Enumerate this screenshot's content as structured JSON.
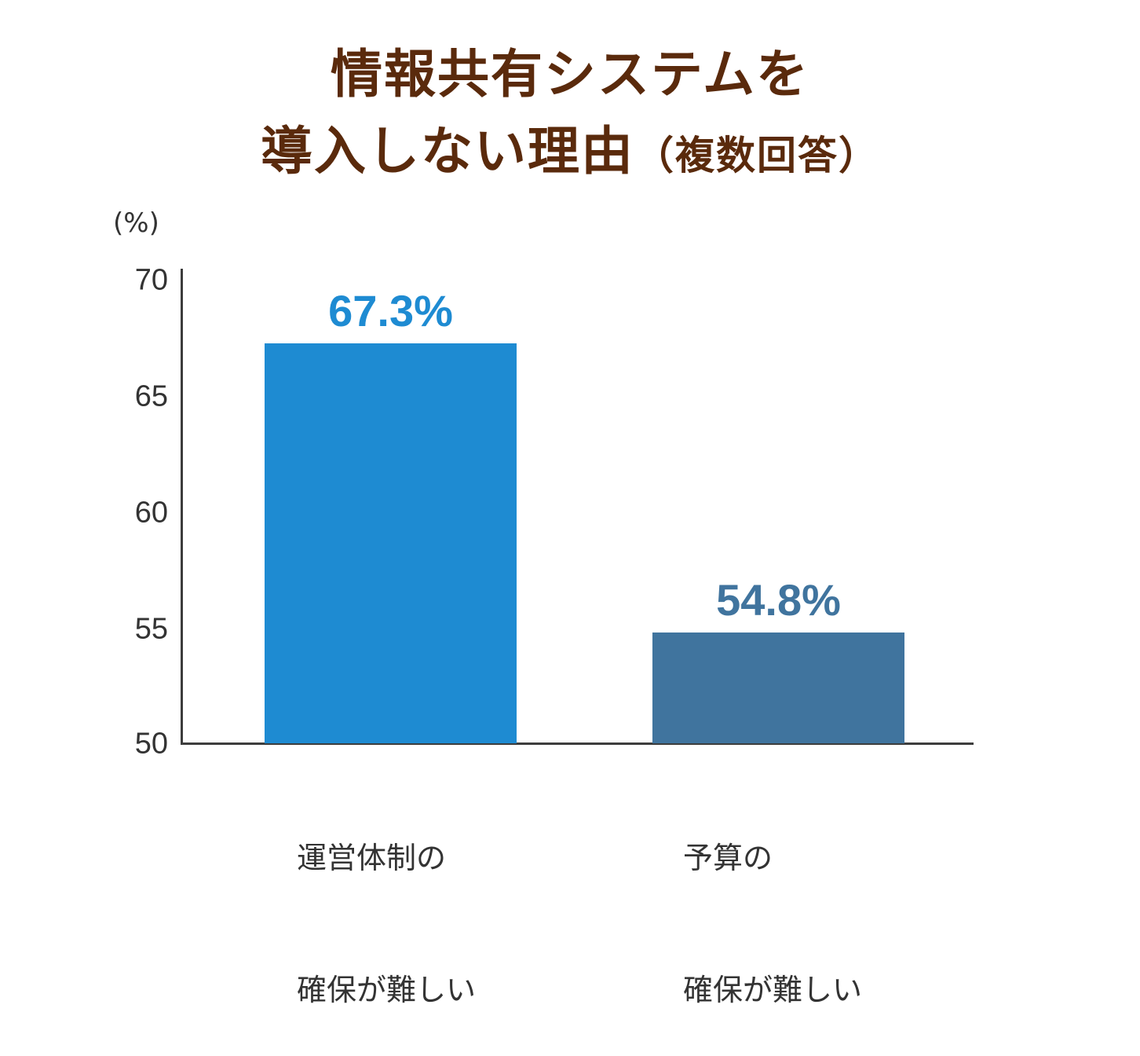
{
  "chart_data": {
    "type": "bar",
    "title": "情報共有システムを導入しない理由（複数回答）",
    "title_lines": [
      "情報共有システムを",
      "導入しない理由"
    ],
    "title_suffix": "（複数回答）",
    "ylabel": "(%)",
    "xlabel": "",
    "ylim": [
      50,
      70
    ],
    "yticks": [
      "70",
      "65",
      "60",
      "55",
      "50"
    ],
    "grid": false,
    "categories": [
      "運営体制の確保が難しい",
      "予算の確保が難しい"
    ],
    "category_lines": [
      [
        "運営体制の",
        "確保が難しい"
      ],
      [
        "予算の",
        "確保が難しい"
      ]
    ],
    "values": [
      67.3,
      54.8
    ],
    "value_labels": [
      "67.3%",
      "54.8%"
    ],
    "colors": [
      "#1e8bd2",
      "#40749e"
    ],
    "title_color": "#5a2a0c"
  }
}
